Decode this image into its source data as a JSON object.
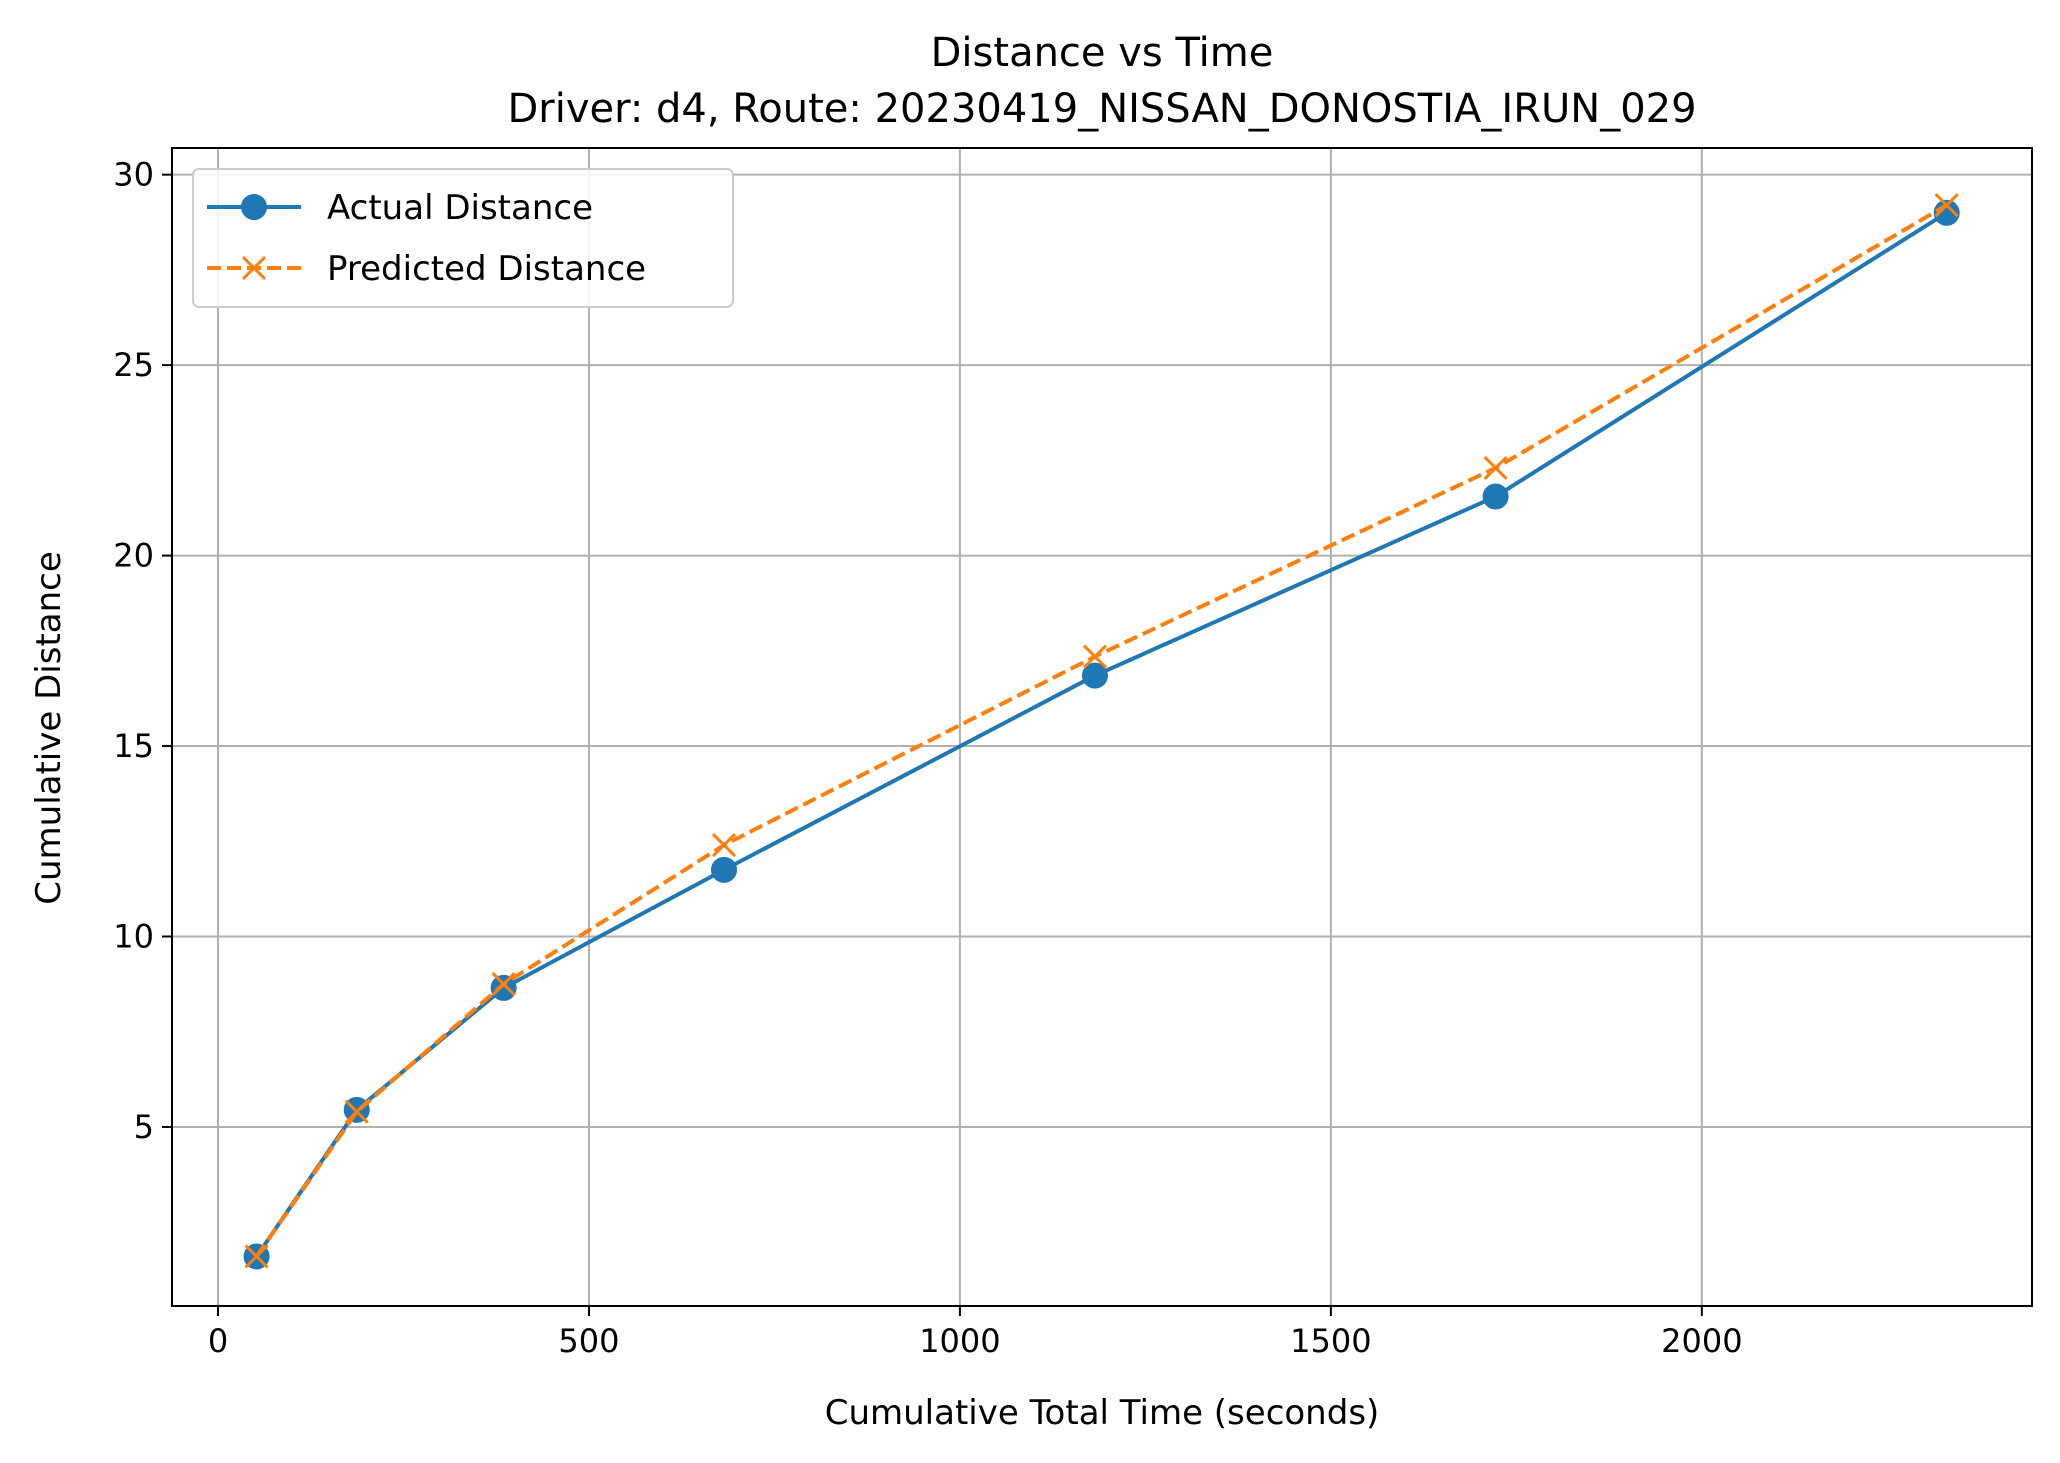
{
  "chart_data": {
    "type": "line",
    "title": "Distance vs Time",
    "subtitle": "Driver: d4, Route: 20230419_NISSAN_DONOSTIA_IRUN_029",
    "xlabel": "Cumulative Total Time (seconds)",
    "ylabel": "Cumulative Distance",
    "xlim": [
      -62,
      2445
    ],
    "ylim": [
      0.3,
      30.7
    ],
    "xticks": [
      0,
      500,
      1000,
      1500,
      2000
    ],
    "yticks": [
      5,
      10,
      15,
      20,
      25,
      30
    ],
    "grid": true,
    "legend_position": "top-left",
    "series": [
      {
        "name": "Actual Distance",
        "color": "#1f77b4",
        "line_style": "solid",
        "marker": "circle",
        "x": [
          52,
          187,
          385,
          682,
          1182,
          1722,
          2330
        ],
        "y": [
          1.6,
          5.45,
          8.65,
          11.75,
          16.85,
          21.55,
          29.0
        ]
      },
      {
        "name": "Predicted Distance",
        "color": "#ff7f0e",
        "line_style": "dashed",
        "marker": "x",
        "x": [
          52,
          187,
          385,
          682,
          1182,
          1722,
          2330
        ],
        "y": [
          1.6,
          5.4,
          8.75,
          12.4,
          17.35,
          22.3,
          29.2
        ]
      }
    ]
  }
}
